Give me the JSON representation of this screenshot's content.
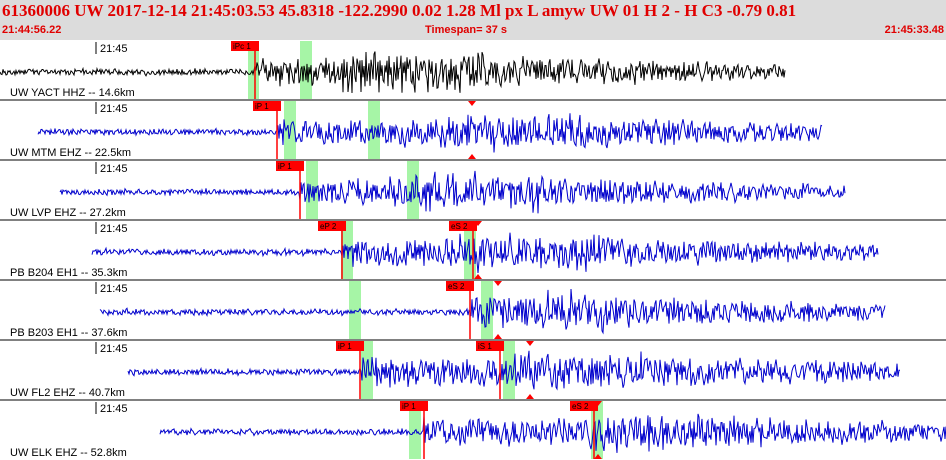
{
  "header": {
    "event_line": "61360006 UW 2017-12-14 21:45:03.53   45.8318 -122.2990   0.02  1.28 Ml  px  L amyw     UW 01  H   2  -  H C3   -0.79  0.81",
    "start_time": "21:44:56.22",
    "timespan": "Timespan=  37 s",
    "end_time": "21:45:33.48"
  },
  "colors": {
    "header_bg": "#dcdcdc",
    "header_text": "#e00000",
    "trace_first": "#000000",
    "trace": "#0000cc",
    "pick_box": "#ff0000",
    "window_highlight": "#a6f5a6"
  },
  "panels": [
    {
      "label": "UW YACT HHZ -- 14.6km",
      "time_label": "21:45",
      "trace_color": "black",
      "trace_start": 0,
      "trace_end": 785,
      "picks": [
        {
          "label": "iPc 1",
          "x": 255
        }
      ],
      "windows": [
        [
          248,
          259
        ],
        [
          300,
          312
        ]
      ],
      "markers": []
    },
    {
      "label": "UW MTM EHZ -- 22.5km",
      "time_label": "21:45",
      "trace_color": "blue",
      "trace_start": 38,
      "trace_end": 822,
      "picks": [
        {
          "label": "iP 1",
          "x": 277
        }
      ],
      "windows": [
        [
          284,
          296
        ],
        [
          368,
          380
        ]
      ],
      "markers": [
        472
      ]
    },
    {
      "label": "UW LVP EHZ -- 27.2km",
      "time_label": "21:45",
      "trace_color": "blue",
      "trace_start": 60,
      "trace_end": 845,
      "picks": [
        {
          "label": "iP 1",
          "x": 300
        }
      ],
      "windows": [
        [
          306,
          318
        ],
        [
          407,
          419
        ]
      ],
      "markers": []
    },
    {
      "label": "PB B204 EH1 -- 35.3km",
      "time_label": "21:45",
      "trace_color": "blue",
      "trace_start": 92,
      "trace_end": 878,
      "picks": [
        {
          "label": "eP 2",
          "x": 342
        },
        {
          "label": "eS 2",
          "x": 473
        }
      ],
      "windows": [
        [
          341,
          353
        ],
        [
          464,
          476
        ]
      ],
      "markers": [
        478
      ]
    },
    {
      "label": "PB B203 EH1 -- 37.6km",
      "time_label": "21:45",
      "trace_color": "blue",
      "trace_start": 100,
      "trace_end": 885,
      "picks": [
        {
          "label": "eS 2",
          "x": 470
        }
      ],
      "windows": [
        [
          349,
          361
        ],
        [
          481,
          493
        ]
      ],
      "markers": [
        498
      ]
    },
    {
      "label": "UW FL2 EHZ -- 40.7km",
      "time_label": "21:45",
      "trace_color": "blue",
      "trace_start": 128,
      "trace_end": 900,
      "picks": [
        {
          "label": "iP 1",
          "x": 360
        },
        {
          "label": "iS 1",
          "x": 500
        }
      ],
      "windows": [
        [
          361,
          373
        ],
        [
          503,
          515
        ]
      ],
      "markers": [
        530
      ]
    },
    {
      "label": "UW ELK EHZ -- 52.8km",
      "time_label": "21:45",
      "trace_color": "blue",
      "trace_start": 160,
      "trace_end": 946,
      "picks": [
        {
          "label": "iP 1",
          "x": 424
        },
        {
          "label": "eS 2",
          "x": 594
        }
      ],
      "windows": [
        [
          409,
          421
        ],
        [
          591,
          603
        ]
      ],
      "markers": [
        598
      ]
    }
  ]
}
